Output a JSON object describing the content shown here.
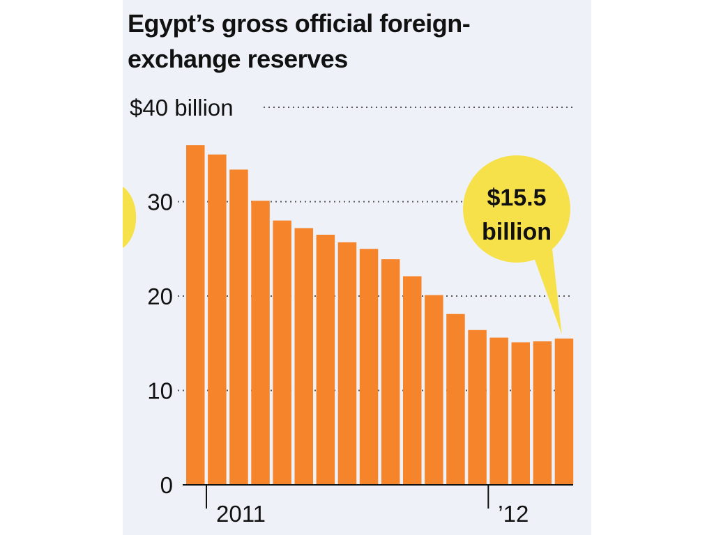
{
  "chart_data": {
    "type": "bar",
    "title": "Egypt’s gross official foreign-exchange reserves",
    "ylim": [
      0,
      40
    ],
    "y_ticks": [
      {
        "value": 40,
        "label": "$40 billion"
      },
      {
        "value": 30,
        "label": "30"
      },
      {
        "value": 20,
        "label": "20"
      },
      {
        "value": 10,
        "label": "10"
      },
      {
        "value": 0,
        "label": "0"
      }
    ],
    "x_labels": [
      {
        "index": 0,
        "label": "2011"
      },
      {
        "index": 13,
        "label": "’12"
      }
    ],
    "values": [
      36.0,
      35.0,
      33.4,
      30.1,
      28.0,
      27.2,
      26.5,
      25.7,
      25.0,
      23.9,
      22.1,
      20.1,
      18.1,
      16.4,
      15.6,
      15.1,
      15.2,
      15.5
    ],
    "callout": {
      "line1": "$15.5",
      "line2": "billion",
      "target_index": 17
    },
    "grid": true,
    "colors": {
      "bar": "#f5842a",
      "background": "#eef2f8",
      "callout": "#f7e14a",
      "grid": "#555555"
    }
  }
}
